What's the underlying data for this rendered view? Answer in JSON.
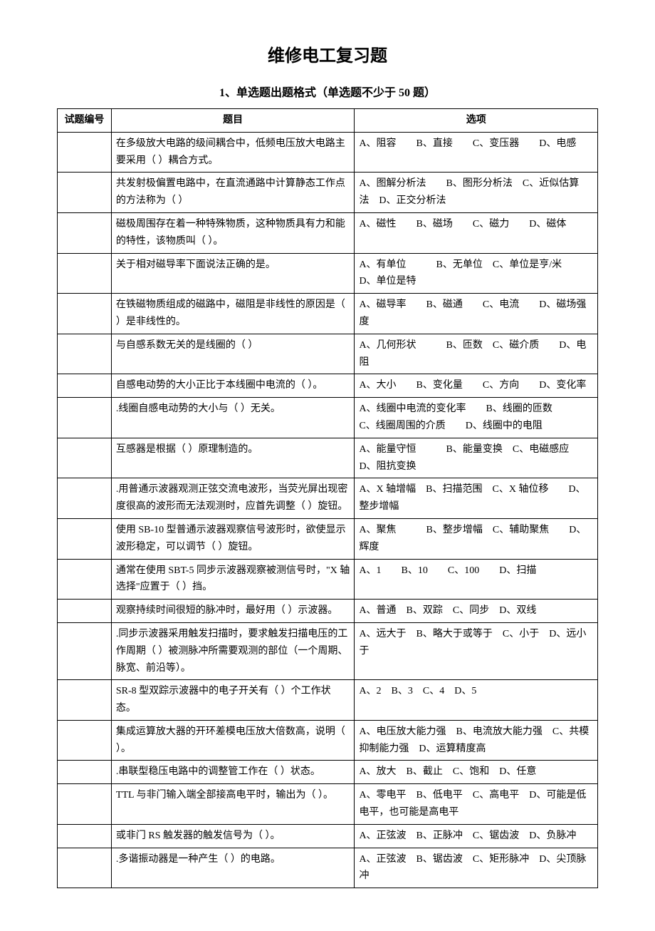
{
  "title": "维修电工复习题",
  "subtitle": "1、单选题出题格式（单选题不少于 50 题）",
  "header": {
    "id": "试题编号",
    "question": "题目",
    "options": "选项"
  },
  "rows": [
    {
      "id": "",
      "question": "在多级放大电路的级间耦合中，低频电压放大电路主要采用（ ）耦合方式。",
      "options": "A、阻容  B、直接  C、变压器  D、电感"
    },
    {
      "id": "",
      "question": "共发射极偏置电路中，在直流通路中计算静态工作点的方法称为（ ）",
      "options": "A、图解分析法  B、图形分析法 C、近似估算法 D、正交分析法"
    },
    {
      "id": "",
      "question": "磁极周围存在着一种特殊物质，这种物质具有力和能的特性，该物质叫（ ）。",
      "options": "A、磁性  B、磁场  C、磁力  D、磁体"
    },
    {
      "id": "",
      "question": "关于相对磁导率下面说法正确的是。",
      "options": "A、有单位   B、无单位 C、单位是亨/米  D、单位是特"
    },
    {
      "id": "",
      "question": "在铁磁物质组成的磁路中，磁阻是非线性的原因是（ ）是非线性的。",
      "options": "A、磁导率  B、磁通  C、电流  D、磁场强度"
    },
    {
      "id": "",
      "question": "与自感系数无关的是线圈的（ ）",
      "options": "A、几何形状   B、匝数 C、磁介质  D、电阻"
    },
    {
      "id": "",
      "question": "自感电动势的大小正比于本线圈中电流的（ ）。",
      "options": "A、大小  B、变化量  C、方向  D、变化率"
    },
    {
      "id": "",
      "question": ".线圈自感电动势的大小与（ ）无关。",
      "options": "A、线圈中电流的变化率  B、线圈的匝数\nC、线圈周围的介质  D、线圈中的电阻"
    },
    {
      "id": "",
      "question": "互感器是根据（ ）原理制造的。",
      "options": "A、能量守恒   B、能量变换 C、电磁感应  D、阻抗变换"
    },
    {
      "id": "",
      "question": ".用普通示波器观测正弦交流电波形，当荧光屏出现密度很高的波形而无法观测时，应首先调整（ ）旋钮。",
      "options": "A、X 轴增幅 B、扫描范围 C、X 轴位移  D、整步增幅"
    },
    {
      "id": "",
      "question": "使用 SB-10 型普通示波器观察信号波形时，欲使显示波形稳定，可以调节（ ）旋钮。",
      "options": "A、聚焦   B、整步增幅 C、辅助聚焦  D、辉度"
    },
    {
      "id": "",
      "question": "通常在使用 SBT-5 同步示波器观察被测信号时，\"X 轴选择\"应置于（ ）挡。",
      "options": "A、1  B、10  C、100  D、扫描"
    },
    {
      "id": "",
      "question": "观察持续时间很短的脉冲时，最好用（ ）示波器。",
      "options": "A、普通 B、双踪 C、同步 D、双线"
    },
    {
      "id": "",
      "question": ".同步示波器采用触发扫描时，要求触发扫描电压的工作周期（ ）被测脉冲所需要观测的部位（一个周期、脉宽、前沿等）。",
      "options": "A、远大于 B、略大于或等于 C、小于 D、远小于"
    },
    {
      "id": "",
      "question": "SR-8 型双踪示波器中的电子开关有（ ）个工作状态。",
      "options": "A、2 B、3 C、4 D、5"
    },
    {
      "id": "",
      "question": "集成运算放大器的开环差模电压放大倍数高，说明（ ）。",
      "options": "A、电压放大能力强 B、电流放大能力强 C、共模抑制能力强 D、运算精度高"
    },
    {
      "id": "",
      "question": ".串联型稳压电路中的调整管工作在（ ）状态。",
      "options": "A、放大 B、截止 C、饱和 D、任意"
    },
    {
      "id": "",
      "question": "TTL 与非门输入端全部接高电平时，输出为（ ）。",
      "options": "A、零电平 B、低电平 C、高电平 D、可能是低电平，也可能是高电平"
    },
    {
      "id": "",
      "question": "或非门 RS 触发器的触发信号为（ ）。",
      "options": "A、正弦波 B、正脉冲 C、锯齿波 D、负脉冲"
    },
    {
      "id": "",
      "question": ".多谐振动器是一种产生（ ）的电路。",
      "options": "A、正弦波 B、锯齿波 C、矩形脉冲 D、尖顶脉冲"
    }
  ]
}
